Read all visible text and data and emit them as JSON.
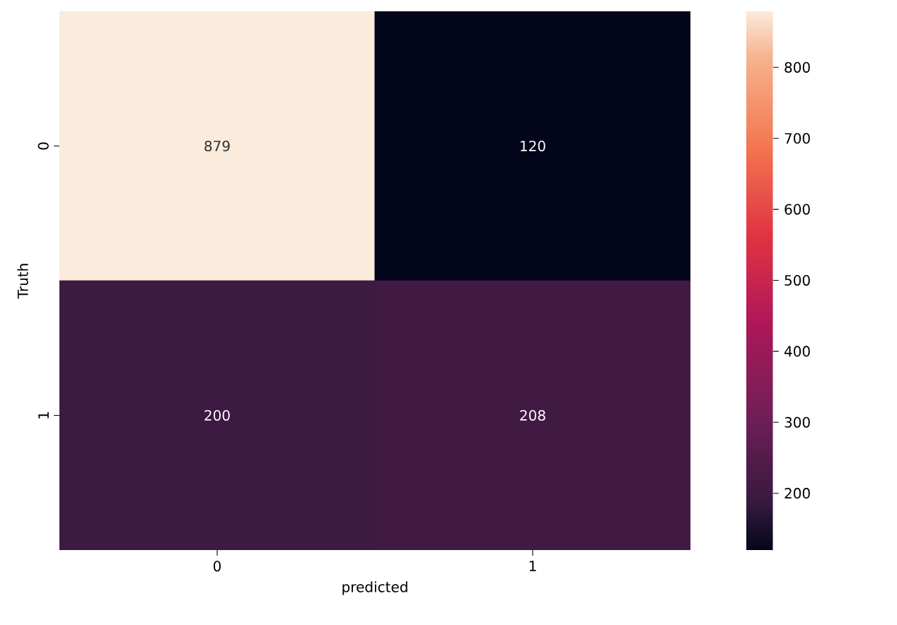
{
  "chart_data": {
    "type": "heatmap",
    "xlabel": "predicted",
    "ylabel": "Truth",
    "categories": [
      "0",
      "1"
    ],
    "y_categories": [
      "0",
      "1"
    ],
    "cells": [
      [
        879,
        120
      ],
      [
        200,
        208
      ]
    ],
    "clim": [
      120,
      879
    ],
    "cticks": [
      200,
      300,
      400,
      500,
      600,
      700,
      800
    ],
    "data_labels": true
  }
}
